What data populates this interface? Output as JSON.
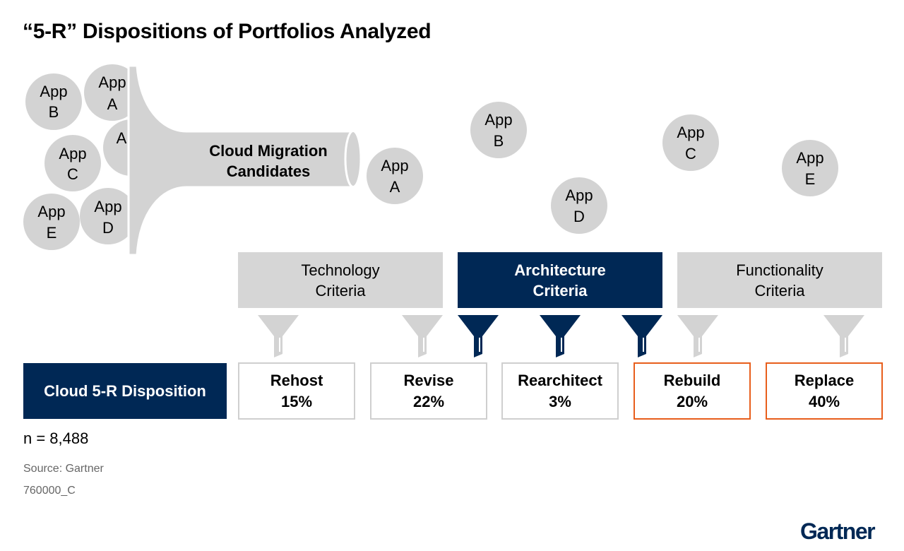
{
  "title": "“5-R” Dispositions of Portfolios Analyzed",
  "funnel": {
    "label_line1": "Cloud Migration",
    "label_line2": "Candidates",
    "input_apps": [
      {
        "line1": "App",
        "line2": "B"
      },
      {
        "line1": "App",
        "line2": "A"
      },
      {
        "line1": "App",
        "line2": "C"
      },
      {
        "line1": "A",
        "line2": ""
      },
      {
        "line1": "App",
        "line2": "E"
      },
      {
        "line1": "App",
        "line2": "D"
      }
    ],
    "output_app": {
      "line1": "App",
      "line2": "A"
    }
  },
  "floating_apps": [
    {
      "line1": "App",
      "line2": "B"
    },
    {
      "line1": "App",
      "line2": "D"
    },
    {
      "line1": "App",
      "line2": "C"
    },
    {
      "line1": "App",
      "line2": "E"
    }
  ],
  "criteria": [
    {
      "line1": "Technology",
      "line2": "Criteria"
    },
    {
      "line1": "Architecture",
      "line2": "Criteria"
    },
    {
      "line1": "Functionality",
      "line2": "Criteria"
    }
  ],
  "disposition_label": "Cloud 5-R Disposition",
  "outcomes": [
    {
      "name": "Rehost",
      "percent": "15%"
    },
    {
      "name": "Revise",
      "percent": "22%"
    },
    {
      "name": "Rearchitect",
      "percent": "3%"
    },
    {
      "name": "Rebuild",
      "percent": "20%"
    },
    {
      "name": "Replace",
      "percent": "40%"
    }
  ],
  "sample_size": "n = 8,488",
  "source": "Source: Gartner",
  "figure_id": "760000_C",
  "brand": "Gartner",
  "colors": {
    "navy": "#002855",
    "grey": "#d6d6d6",
    "bubble": "#d3d3d3",
    "highlight": "#e85e1c",
    "outcome_border": "#cfcfcf"
  }
}
